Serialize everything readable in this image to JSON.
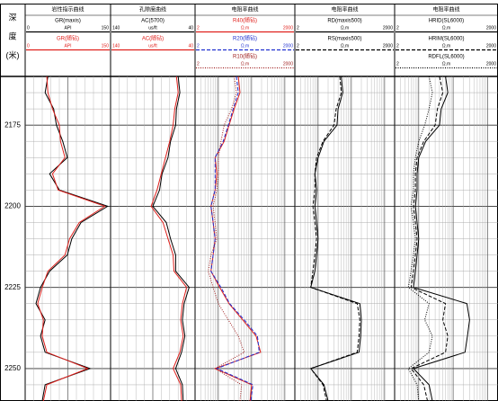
{
  "depth_axis": {
    "title_lines": [
      "深",
      "度",
      "(米)"
    ],
    "ylim": [
      2160,
      2260
    ],
    "yticks": [
      2175,
      2200,
      2225,
      2250
    ],
    "grid_yticks": [
      2165,
      2170,
      2175,
      2180,
      2185,
      2190,
      2195,
      2200,
      2205,
      2210,
      2215,
      2220,
      2225,
      2230,
      2235,
      2240,
      2245,
      2250,
      2255
    ]
  },
  "chart_data": [
    {
      "type": "line",
      "title": "岩性指示曲线",
      "log_x": false,
      "y": [
        2160,
        2165,
        2170,
        2175,
        2180,
        2185,
        2190,
        2195,
        2200,
        2205,
        2210,
        2215,
        2220,
        2225,
        2230,
        2235,
        2240,
        2245,
        2250,
        2255,
        2260
      ],
      "series": [
        {
          "name": "GR(maxis)",
          "unit": "API",
          "color": "#000000",
          "dash": "solid",
          "xlim": [
            0,
            150
          ],
          "values": [
            40,
            35,
            50,
            55,
            66,
            74,
            43,
            60,
            145,
            98,
            82,
            74,
            43,
            27,
            19,
            35,
            27,
            35,
            114,
            35,
            30
          ]
        },
        {
          "name": "GR(随钻)",
          "unit": "API",
          "color": "#e0201c",
          "dash": "solid",
          "xlim": [
            0,
            150
          ],
          "values": [
            38,
            40,
            48,
            60,
            62,
            70,
            48,
            58,
            140,
            95,
            78,
            70,
            40,
            30,
            22,
            32,
            30,
            38,
            110,
            38,
            32
          ]
        }
      ]
    },
    {
      "type": "line",
      "title": "孔隙度曲线",
      "log_x": false,
      "y": [
        2160,
        2165,
        2170,
        2175,
        2180,
        2185,
        2190,
        2195,
        2200,
        2205,
        2210,
        2215,
        2220,
        2225,
        2230,
        2235,
        2240,
        2245,
        2250,
        2255,
        2260
      ],
      "series": [
        {
          "name": "AC(5700)",
          "unit": "us/ft",
          "color": "#000000",
          "dash": "solid",
          "xlim": [
            140,
            40
          ],
          "values": [
            60,
            58,
            62,
            63,
            69,
            72,
            79,
            82,
            90,
            74,
            69,
            63,
            63,
            47,
            53,
            55,
            52,
            56,
            63,
            55,
            54
          ]
        },
        {
          "name": "AC(随钻)",
          "unit": "us/ft",
          "color": "#e0201c",
          "dash": "solid",
          "xlim": [
            140,
            40
          ],
          "values": [
            62,
            60,
            64,
            66,
            70,
            75,
            80,
            85,
            92,
            78,
            72,
            66,
            65,
            50,
            55,
            57,
            54,
            58,
            66,
            57,
            56
          ]
        }
      ]
    },
    {
      "type": "line",
      "title": "电阻率曲线",
      "log_x": true,
      "y": [
        2160,
        2165,
        2170,
        2175,
        2180,
        2185,
        2190,
        2195,
        2200,
        2205,
        2210,
        2215,
        2220,
        2225,
        2230,
        2235,
        2240,
        2245,
        2250,
        2255,
        2260
      ],
      "series": [
        {
          "name": "R40(随钻)",
          "unit": "Ω.m",
          "color": "#e0201c",
          "dash": "solid",
          "xlim": [
            2,
            2000
          ],
          "values": [
            40,
            45,
            30,
            21,
            15,
            8,
            9,
            8,
            6,
            7,
            8,
            7,
            6,
            11,
            21,
            54,
            137,
            187,
            8,
            100,
            90
          ]
        },
        {
          "name": "R20(随钻)",
          "unit": "Ω.m",
          "color": "#2030d0",
          "dash": "dashed",
          "xlim": [
            2,
            2000
          ],
          "values": [
            35,
            40,
            28,
            20,
            14,
            8,
            8,
            8,
            6,
            7,
            8,
            7,
            6,
            12,
            22,
            60,
            150,
            170,
            9,
            110,
            95
          ]
        },
        {
          "name": "R10(随钻)",
          "unit": "Ω.m",
          "color": "#a02020",
          "dash": "dotted",
          "xlim": [
            2,
            2000
          ],
          "values": [
            30,
            35,
            25,
            15,
            12,
            10,
            10,
            9,
            7,
            8,
            9,
            6,
            5,
            7,
            10,
            20,
            40,
            60,
            8,
            50,
            45
          ]
        }
      ]
    },
    {
      "type": "line",
      "title": "电阻率曲线",
      "log_x": true,
      "y": [
        2160,
        2165,
        2170,
        2175,
        2180,
        2185,
        2190,
        2195,
        2200,
        2205,
        2210,
        2215,
        2220,
        2225,
        2230,
        2235,
        2240,
        2245,
        2250,
        2255,
        2260
      ],
      "series": [
        {
          "name": "RD(maxis500)",
          "unit": "Ω.m",
          "color": "#000000",
          "dash": "solid",
          "xlim": [
            2,
            2000
          ],
          "values": [
            50,
            55,
            40,
            37,
            15,
            10,
            8,
            9,
            8,
            9,
            10,
            9,
            8,
            6,
            180,
            200,
            190,
            170,
            6,
            15,
            20
          ]
        },
        {
          "name": "RS(maxis500)",
          "unit": "Ω.m",
          "color": "#000000",
          "dash": "dashed",
          "xlim": [
            2,
            2000
          ],
          "values": [
            45,
            50,
            35,
            30,
            14,
            9,
            8,
            8,
            7,
            8,
            9,
            8,
            7,
            6,
            150,
            180,
            170,
            150,
            6,
            14,
            18
          ]
        }
      ]
    },
    {
      "type": "line",
      "title": "电阻率曲线",
      "log_x": true,
      "y": [
        2160,
        2165,
        2170,
        2175,
        2180,
        2185,
        2190,
        2195,
        2200,
        2205,
        2210,
        2215,
        2220,
        2225,
        2230,
        2235,
        2240,
        2245,
        2250,
        2255,
        2260
      ],
      "series": [
        {
          "name": "HRID(SL6000)",
          "unit": "Ω.m",
          "color": "#000000",
          "dash": "solid",
          "xlim": [
            2,
            2000
          ],
          "values": [
            60,
            70,
            45,
            40,
            16,
            10,
            9,
            9,
            8,
            9,
            10,
            9,
            8,
            7,
            250,
            300,
            260,
            220,
            7,
            20,
            25
          ]
        },
        {
          "name": "HRIM(SL6000)",
          "unit": "Ω.m",
          "color": "#000000",
          "dash": "dashed",
          "xlim": [
            2,
            2000
          ],
          "values": [
            40,
            50,
            35,
            30,
            14,
            9,
            8,
            8,
            7,
            8,
            9,
            8,
            7,
            6,
            60,
            50,
            70,
            60,
            6,
            14,
            18
          ]
        },
        {
          "name": "RDFL(SL6000)",
          "unit": "Ω.m",
          "color": "#000000",
          "dash": "dotted",
          "xlim": [
            2,
            2000
          ],
          "values": [
            20,
            25,
            20,
            15,
            10,
            8,
            7,
            7,
            6,
            7,
            8,
            7,
            6,
            5,
            20,
            15,
            25,
            20,
            5,
            9,
            10
          ]
        }
      ]
    }
  ]
}
